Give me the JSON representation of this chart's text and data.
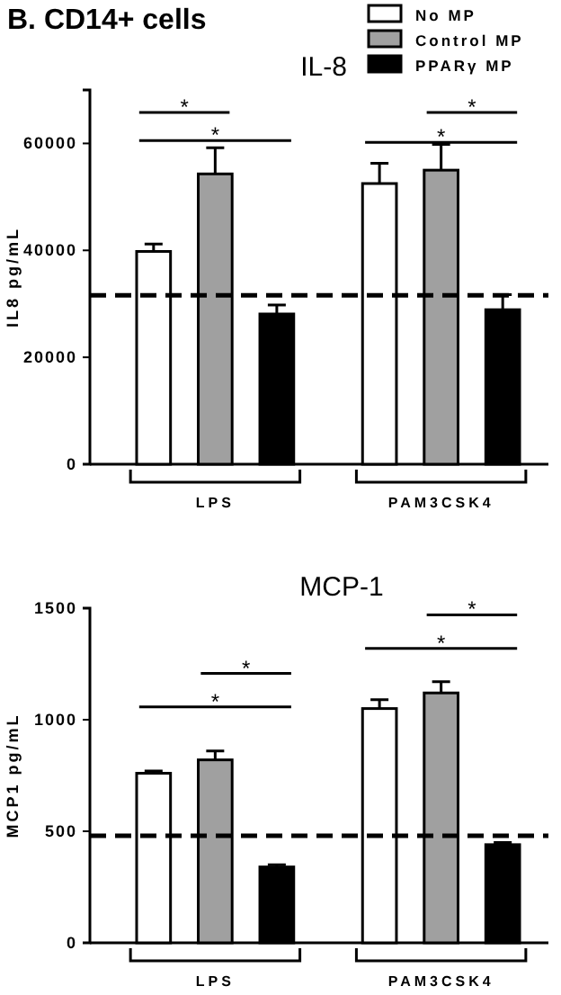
{
  "chart_data": [
    {
      "type": "bar",
      "title": "IL-8",
      "ylabel": "IL8 pg/mL",
      "categories": [
        "LPS",
        "PAM3CSK4"
      ],
      "series": [
        {
          "name": "No MP",
          "color": "#ffffff",
          "values": [
            39800,
            52500
          ],
          "errors": [
            [
              39800,
              41200
            ],
            [
              52500,
              56300
            ]
          ]
        },
        {
          "name": "Control MP",
          "color": "#a0a0a0",
          "values": [
            54300,
            55000
          ],
          "errors": [
            [
              54300,
              59200
            ],
            [
              55000,
              59800
            ]
          ]
        },
        {
          "name": "PPARγ MP",
          "color": "#000000",
          "values": [
            28100,
            28900
          ],
          "errors": [
            [
              28100,
              29800
            ],
            [
              28900,
              31700
            ]
          ]
        }
      ],
      "ylim": [
        0,
        70000
      ],
      "yticks": [
        0,
        20000,
        40000,
        60000
      ],
      "legend": "top right",
      "grid": false,
      "ref_lines": [
        {
          "axis": "y",
          "value": 31600,
          "line_style": "dashed"
        }
      ],
      "annotations": [
        "B.  CD14+ cells",
        "*",
        "*",
        "*",
        "*"
      ]
    },
    {
      "type": "bar",
      "title": "MCP-1",
      "ylabel": "MCP1 pg/mL",
      "categories": [
        "LPS",
        "PAM3CSK4"
      ],
      "series": [
        {
          "color": "#ffffff",
          "values": [
            760,
            1050
          ],
          "errors": [
            [
              760,
              770
            ],
            [
              1050,
              1090
            ]
          ]
        },
        {
          "color": "#a0a0a0",
          "values": [
            820,
            1120
          ],
          "errors": [
            [
              820,
              860
            ],
            [
              1120,
              1170
            ]
          ]
        },
        {
          "color": "#000000",
          "values": [
            340,
            440
          ],
          "errors": [
            [
              340,
              350
            ],
            [
              440,
              450
            ]
          ]
        }
      ],
      "ylim": [
        0,
        1500
      ],
      "yticks": [
        0,
        500,
        1000,
        1500
      ],
      "legend": false,
      "grid": false,
      "ref_lines": [
        {
          "axis": "y",
          "value": 480,
          "line_style": "dashed"
        }
      ],
      "annotations": [
        "*",
        "*",
        "*",
        "*"
      ]
    }
  ]
}
